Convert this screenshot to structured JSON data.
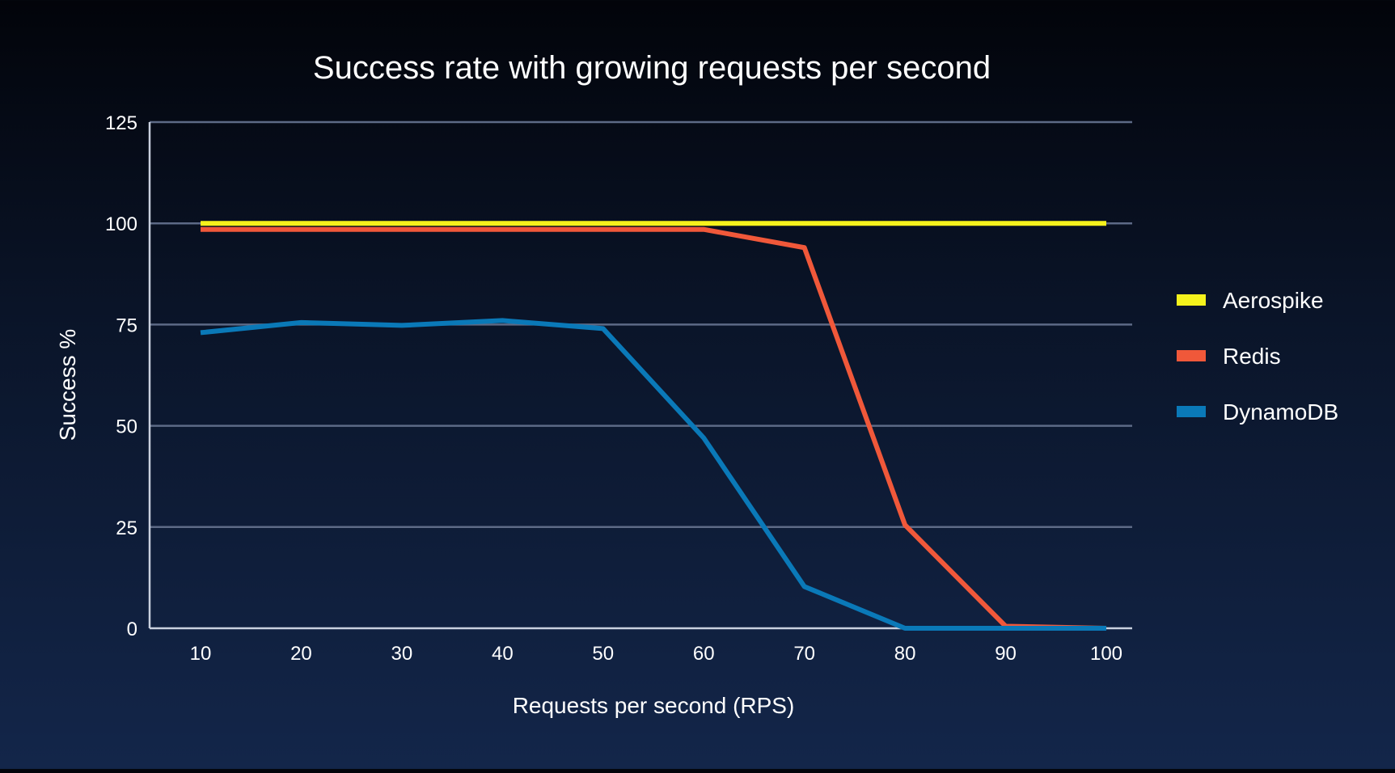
{
  "chart_data": {
    "type": "line",
    "title": "Success rate with growing requests per second",
    "xlabel": "Requests per second (RPS)",
    "ylabel": "Success %",
    "x": [
      10,
      20,
      30,
      40,
      50,
      60,
      70,
      80,
      90,
      100
    ],
    "ylim": [
      0,
      125
    ],
    "yticks": [
      0,
      25,
      50,
      75,
      100,
      125
    ],
    "grid": true,
    "legend_position": "right",
    "series": [
      {
        "name": "Aerospike",
        "color": "#f5f21c",
        "values": [
          100,
          100,
          100,
          100,
          100,
          100,
          100,
          100,
          100,
          100
        ]
      },
      {
        "name": "Redis",
        "color": "#f0583a",
        "values": [
          98.5,
          98.5,
          98.5,
          98.5,
          98.5,
          98.5,
          94,
          25.5,
          0.5,
          0
        ]
      },
      {
        "name": "DynamoDB",
        "color": "#0a79b8",
        "values": [
          73,
          75.5,
          74.8,
          76,
          74,
          47,
          10.3,
          0,
          0,
          0
        ]
      }
    ]
  }
}
